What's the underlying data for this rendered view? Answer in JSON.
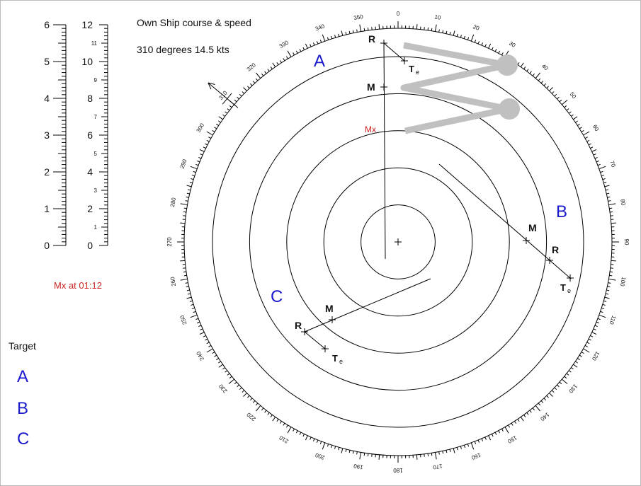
{
  "own_ship": {
    "title": "Own Ship course & speed",
    "course_speed": "310 degrees  14.5 kts"
  },
  "mx_time_text": "Mx  at 01:12",
  "target_list": {
    "header": "Target",
    "items": [
      "A",
      "B",
      "C"
    ]
  },
  "colors": {
    "target_letter": "#1a1acc",
    "mx": "#cc2222",
    "rings": "#000000",
    "pointer": "#c0c0c0"
  },
  "scales": {
    "left_major": [
      "6",
      "5",
      "4",
      "3",
      "2",
      "1",
      "0"
    ],
    "right_major": [
      "12",
      "10",
      "8",
      "6",
      "4",
      "2",
      "0"
    ],
    "right_minor": [
      "11",
      "9",
      "7",
      "5",
      "3",
      "1"
    ]
  },
  "radar": {
    "range_rings": 5,
    "bearing_labels": [
      "0",
      "10",
      "20",
      "30",
      "40",
      "50",
      "60",
      "70",
      "80",
      "90",
      "100",
      "110",
      "120",
      "130",
      "140",
      "150",
      "160",
      "170",
      "180",
      "190",
      "200",
      "210",
      "220",
      "230",
      "240",
      "250",
      "260",
      "270",
      "280",
      "290",
      "300",
      "310",
      "320",
      "330",
      "340",
      "350"
    ],
    "plot_labels": {
      "R": "R",
      "M": "M",
      "T": "T",
      "e": "e",
      "Mx": "Mx"
    },
    "targets": [
      {
        "name": "A",
        "has_mx": true
      },
      {
        "name": "B",
        "has_mx": false
      },
      {
        "name": "C",
        "has_mx": false
      }
    ]
  }
}
